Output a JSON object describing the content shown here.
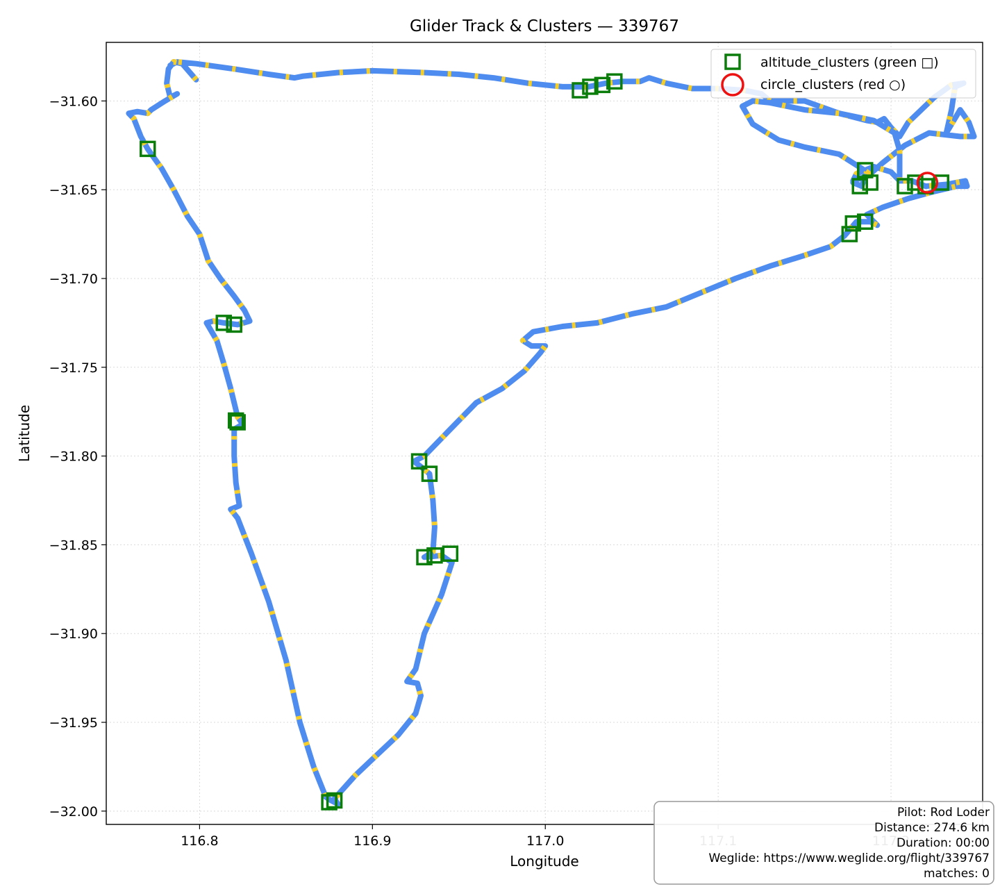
{
  "chart_data": {
    "type": "scatter",
    "title": "Glider Track & Clusters — 339767",
    "xlabel": "Longitude",
    "ylabel": "Latitude",
    "xlim": [
      116.746,
      117.253
    ],
    "ylim": [
      -32.0075,
      -31.567
    ],
    "x_ticks": [
      116.8,
      116.9,
      117.0,
      117.1,
      117.2
    ],
    "x_tick_labels": [
      "116.8",
      "116.9",
      "117.0",
      "117.1",
      "117.2"
    ],
    "y_ticks": [
      -31.6,
      -31.65,
      -31.7,
      -31.75,
      -31.8,
      -31.85,
      -31.9,
      -31.95,
      -32.0
    ],
    "y_tick_labels": [
      "−31.60",
      "−31.65",
      "−31.70",
      "−31.75",
      "−31.80",
      "−31.85",
      "−31.90",
      "−31.95",
      "−32.00"
    ],
    "grid": true,
    "legend_position": "top-right",
    "colors": {
      "track": "#4f8cf0",
      "track_alt": "#ffd21f",
      "altitude": "#0a7d0a",
      "circle": "#ee1111"
    },
    "series": [
      {
        "name": "track",
        "kind": "line",
        "points": [
          [
            116.798,
            -31.588
          ],
          [
            116.79,
            -31.579
          ],
          [
            116.785,
            -31.578
          ],
          [
            116.782,
            -31.582
          ],
          [
            116.781,
            -31.59
          ],
          [
            116.783,
            -31.598
          ],
          [
            116.787,
            -31.596
          ],
          [
            116.78,
            -31.6
          ],
          [
            116.772,
            -31.605
          ],
          [
            116.77,
            -31.607
          ],
          [
            116.764,
            -31.606
          ],
          [
            116.759,
            -31.607
          ],
          [
            116.762,
            -31.61
          ],
          [
            116.766,
            -31.62
          ],
          [
            116.77,
            -31.627
          ],
          [
            116.778,
            -31.638
          ],
          [
            116.785,
            -31.65
          ],
          [
            116.793,
            -31.665
          ],
          [
            116.8,
            -31.675
          ],
          [
            116.805,
            -31.69
          ],
          [
            116.812,
            -31.7
          ],
          [
            116.82,
            -31.71
          ],
          [
            116.826,
            -31.718
          ],
          [
            116.829,
            -31.724
          ],
          [
            116.822,
            -31.726
          ],
          [
            116.814,
            -31.725
          ],
          [
            116.808,
            -31.724
          ],
          [
            116.804,
            -31.725
          ],
          [
            116.81,
            -31.735
          ],
          [
            116.814,
            -31.748
          ],
          [
            116.818,
            -31.762
          ],
          [
            116.822,
            -31.778
          ],
          [
            116.825,
            -31.782
          ],
          [
            116.82,
            -31.785
          ],
          [
            116.82,
            -31.8
          ],
          [
            116.821,
            -31.815
          ],
          [
            116.823,
            -31.828
          ],
          [
            116.818,
            -31.83
          ],
          [
            116.822,
            -31.835
          ],
          [
            116.83,
            -31.855
          ],
          [
            116.84,
            -31.882
          ],
          [
            116.85,
            -31.915
          ],
          [
            116.858,
            -31.95
          ],
          [
            116.866,
            -31.975
          ],
          [
            116.873,
            -31.992
          ],
          [
            116.876,
            -31.994
          ],
          [
            116.88,
            -31.996
          ],
          [
            116.878,
            -31.993
          ],
          [
            116.89,
            -31.98
          ],
          [
            116.903,
            -31.968
          ],
          [
            116.915,
            -31.957
          ],
          [
            116.925,
            -31.945
          ],
          [
            116.928,
            -31.935
          ],
          [
            116.926,
            -31.928
          ],
          [
            116.92,
            -31.927
          ],
          [
            116.925,
            -31.92
          ],
          [
            116.93,
            -31.9
          ],
          [
            116.94,
            -31.878
          ],
          [
            116.946,
            -31.86
          ],
          [
            116.94,
            -31.856
          ],
          [
            116.93,
            -31.857
          ],
          [
            116.935,
            -31.854
          ],
          [
            116.936,
            -31.84
          ],
          [
            116.935,
            -31.825
          ],
          [
            116.933,
            -31.81
          ],
          [
            116.928,
            -31.806
          ],
          [
            116.924,
            -31.803
          ],
          [
            116.93,
            -31.8
          ],
          [
            116.945,
            -31.785
          ],
          [
            116.96,
            -31.77
          ],
          [
            116.975,
            -31.762
          ],
          [
            116.988,
            -31.752
          ],
          [
            116.997,
            -31.742
          ],
          [
            117.0,
            -31.738
          ],
          [
            116.992,
            -31.738
          ],
          [
            116.987,
            -31.735
          ],
          [
            116.993,
            -31.73
          ],
          [
            117.01,
            -31.727
          ],
          [
            117.03,
            -31.725
          ],
          [
            117.05,
            -31.72
          ],
          [
            117.07,
            -31.716
          ],
          [
            117.09,
            -31.708
          ],
          [
            117.11,
            -31.7
          ],
          [
            117.13,
            -31.693
          ],
          [
            117.15,
            -31.687
          ],
          [
            117.165,
            -31.682
          ],
          [
            117.173,
            -31.676
          ],
          [
            117.18,
            -31.668
          ],
          [
            117.188,
            -31.668
          ],
          [
            117.192,
            -31.67
          ],
          [
            117.186,
            -31.664
          ],
          [
            117.195,
            -31.66
          ],
          [
            117.21,
            -31.655
          ],
          [
            117.225,
            -31.651
          ],
          [
            117.238,
            -31.648
          ],
          [
            117.244,
            -31.648
          ],
          [
            117.243,
            -31.645
          ],
          [
            117.232,
            -31.647
          ],
          [
            117.22,
            -31.648
          ],
          [
            117.212,
            -31.645
          ],
          [
            117.205,
            -31.645
          ],
          [
            117.2,
            -31.64
          ],
          [
            117.19,
            -31.637
          ],
          [
            117.18,
            -31.641
          ],
          [
            117.178,
            -31.645
          ],
          [
            117.187,
            -31.642
          ],
          [
            117.195,
            -31.635
          ],
          [
            117.208,
            -31.625
          ],
          [
            117.222,
            -31.618
          ],
          [
            117.24,
            -31.62
          ],
          [
            117.248,
            -31.62
          ],
          [
            117.245,
            -31.612
          ],
          [
            117.24,
            -31.605
          ],
          [
            117.232,
            -31.618
          ],
          [
            117.235,
            -31.605
          ],
          [
            117.237,
            -31.592
          ],
          [
            117.242,
            -31.59
          ],
          [
            117.235,
            -31.591
          ],
          [
            117.225,
            -31.598
          ],
          [
            117.21,
            -31.612
          ],
          [
            117.205,
            -31.62
          ],
          [
            117.2,
            -31.615
          ],
          [
            117.196,
            -31.61
          ],
          [
            117.192,
            -31.612
          ],
          [
            117.186,
            -31.611
          ],
          [
            117.17,
            -31.607
          ],
          [
            117.15,
            -31.6
          ],
          [
            117.13,
            -31.6
          ],
          [
            117.125,
            -31.596
          ],
          [
            117.115,
            -31.594
          ],
          [
            117.1,
            -31.593
          ],
          [
            117.085,
            -31.593
          ],
          [
            117.07,
            -31.59
          ],
          [
            117.06,
            -31.587
          ],
          [
            117.055,
            -31.589
          ],
          [
            117.045,
            -31.589
          ],
          [
            117.035,
            -31.59
          ],
          [
            117.025,
            -31.592
          ],
          [
            117.01,
            -31.592
          ],
          [
            116.99,
            -31.59
          ],
          [
            116.97,
            -31.587
          ],
          [
            116.95,
            -31.585
          ],
          [
            116.93,
            -31.584
          ],
          [
            116.9,
            -31.583
          ],
          [
            116.88,
            -31.584
          ],
          [
            116.86,
            -31.586
          ],
          [
            116.855,
            -31.587
          ],
          [
            116.84,
            -31.585
          ],
          [
            116.82,
            -31.582
          ],
          [
            116.798,
            -31.579
          ],
          [
            116.787,
            -31.578
          ],
          [
            116.783,
            -31.58
          ]
        ]
      },
      {
        "name": "track-return",
        "kind": "line",
        "points": [
          [
            117.205,
            -31.645
          ],
          [
            117.205,
            -31.628
          ],
          [
            117.202,
            -31.618
          ],
          [
            117.19,
            -31.611
          ],
          [
            117.17,
            -31.607
          ],
          [
            117.15,
            -31.605
          ],
          [
            117.13,
            -31.601
          ],
          [
            117.12,
            -31.6
          ],
          [
            117.114,
            -31.603
          ],
          [
            117.12,
            -31.613
          ],
          [
            117.135,
            -31.622
          ],
          [
            117.15,
            -31.626
          ],
          [
            117.17,
            -31.63
          ],
          [
            117.183,
            -31.638
          ],
          [
            117.186,
            -31.64
          ],
          [
            117.183,
            -31.648
          ],
          [
            117.178,
            -31.646
          ]
        ]
      },
      {
        "name": "altitude_clusters (green □)",
        "kind": "scatter",
        "marker": "square",
        "points": [
          [
            116.77,
            -31.627
          ],
          [
            116.814,
            -31.725
          ],
          [
            116.82,
            -31.726
          ],
          [
            116.821,
            -31.78
          ],
          [
            116.822,
            -31.781
          ],
          [
            116.875,
            -31.995
          ],
          [
            116.878,
            -31.994
          ],
          [
            116.927,
            -31.803
          ],
          [
            116.933,
            -31.81
          ],
          [
            116.93,
            -31.857
          ],
          [
            116.936,
            -31.856
          ],
          [
            116.945,
            -31.855
          ],
          [
            117.02,
            -31.594
          ],
          [
            117.026,
            -31.592
          ],
          [
            117.033,
            -31.591
          ],
          [
            117.04,
            -31.589
          ],
          [
            117.176,
            -31.675
          ],
          [
            117.178,
            -31.669
          ],
          [
            117.185,
            -31.668
          ],
          [
            117.182,
            -31.648
          ],
          [
            117.185,
            -31.639
          ],
          [
            117.188,
            -31.646
          ],
          [
            117.208,
            -31.648
          ],
          [
            117.214,
            -31.646
          ],
          [
            117.22,
            -31.648
          ],
          [
            117.229,
            -31.646
          ]
        ]
      },
      {
        "name": "circle_clusters (red ○)",
        "kind": "scatter",
        "marker": "circle",
        "points": [
          [
            117.221,
            -31.646
          ]
        ]
      }
    ]
  },
  "info_box": {
    "pilot": "Pilot: Rod Loder",
    "distance": "Distance: 274.6 km",
    "duration": "Duration: 00:00",
    "weglide": "Weglide: https://www.weglide.org/flight/339767",
    "matches": "matches: 0"
  }
}
